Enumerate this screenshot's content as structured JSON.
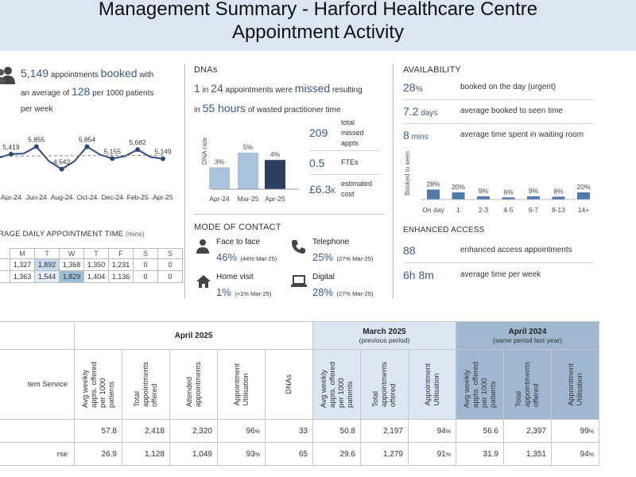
{
  "header": {
    "title_line1": "Management Summary - Harford Healthcare Centre",
    "title_line2": "Appointment Activity"
  },
  "booked": {
    "value": "5,149",
    "text1": "appointments",
    "highlight": "booked",
    "text2": "with",
    "text3": "an average of",
    "avg": "128",
    "text4": "per 1000 patients",
    "text5": "per week"
  },
  "chart_data": [
    {
      "type": "line",
      "x": [
        "Mar-24",
        "Apr-24",
        "May-24",
        "Jun-24",
        "Jul-24",
        "Aug-24",
        "Sep-24",
        "Oct-24",
        "Nov-24",
        "Dec-24",
        "Jan-25",
        "Feb-25",
        "Mar-25",
        "Apr-25"
      ],
      "tick_labels": [
        "Apr-24",
        "Jun-24",
        "Aug-24",
        "Oct-24",
        "Dec-24",
        "Feb-25",
        "Apr-25"
      ],
      "series": [
        {
          "values": [
            5200,
            5419,
            5450,
            5855,
            5000,
            4542,
            5000,
            5854,
            5400,
            5155,
            5300,
            5682,
            5250,
            5149
          ]
        }
      ],
      "data_labels": {
        "1": "5,419",
        "3": "5,855",
        "5": "4,542",
        "7": "5,854",
        "9": "5,155",
        "11": "5,682",
        "13": "5,149"
      },
      "trend": "dashed"
    },
    {
      "type": "bar",
      "ylabel": "DNA rate",
      "categories": [
        "Apr-24",
        "Mar-25",
        "Apr-25"
      ],
      "values": [
        3,
        5,
        4
      ],
      "data_labels": [
        "3%",
        "5%",
        "4%"
      ],
      "colors": [
        "#a9c3dc",
        "#a9c3dc",
        "#2d3f5e"
      ]
    },
    {
      "type": "bar",
      "ylabel": "Booked to seen",
      "categories": [
        "On day",
        "1",
        "2-3",
        "4-5",
        "6-7",
        "8-13",
        "14+"
      ],
      "values": [
        28,
        20,
        9,
        6,
        9,
        8,
        20
      ],
      "data_labels": [
        "28%",
        "20%",
        "9%",
        "6%",
        "9%",
        "8%",
        "20%"
      ],
      "color": "#4f79a8"
    }
  ],
  "daily": {
    "title_main": "RAGE DAILY APPOINTMENT TIME",
    "title_unit": "(mins)",
    "days": [
      "M",
      "T",
      "W",
      "T",
      "F",
      "S",
      "S"
    ],
    "rows": [
      {
        "values": [
          "1,327",
          "1,892",
          "1,368",
          "1,350",
          "1,231",
          "0",
          "0"
        ],
        "shade": [
          "#ffffff",
          "#c7d9ea",
          "#ffffff",
          "#ffffff",
          "#ffffff",
          "#ffffff",
          "#ffffff"
        ]
      },
      {
        "values": [
          "1,363",
          "1,544",
          "1,829",
          "1,404",
          "1,136",
          "0",
          "0"
        ],
        "shade": [
          "#ffffff",
          "#e3ecf5",
          "#9fbdd8",
          "#ffffff",
          "#ffffff",
          "#ffffff",
          "#ffffff"
        ]
      }
    ]
  },
  "dna": {
    "title": "DNAs",
    "v1": "1",
    "w_in": "in",
    "v24": "24",
    "t1": "appointments were",
    "missed": "missed",
    "t2": "resulting",
    "in2": "in",
    "hours": "55 hours",
    "t3": "of wasted practitioner time",
    "stats": [
      {
        "value": "209",
        "label1": "total",
        "label2": "missed",
        "label3": "appts"
      },
      {
        "value": "0.5",
        "label1": "FTEs"
      },
      {
        "value": "£6.3",
        "unit": "K",
        "label1": "estimated",
        "label2": "cost"
      }
    ]
  },
  "mode": {
    "title": "MODE OF CONTACT",
    "items": [
      {
        "label": "Face to face",
        "value": "46%",
        "prev": "(44% Mar-25)",
        "icon": "person-icon"
      },
      {
        "label": "Telephone",
        "value": "25%",
        "prev": "(27% Mar-25)",
        "icon": "phone-icon"
      },
      {
        "label": "Home visit",
        "value": "1%",
        "prev": "(<1% Mar-25)",
        "icon": "home-icon"
      },
      {
        "label": "Digital",
        "value": "28%",
        "prev": "(27% Mar-25)",
        "icon": "laptop-icon"
      }
    ]
  },
  "availability": {
    "title": "AVAILABILITY",
    "rows": [
      {
        "value": "28",
        "unit": "%",
        "desc": "booked on the day (urgent)"
      },
      {
        "value": "7.2",
        "unit": " days",
        "desc": "average booked to seen time"
      },
      {
        "value": "8",
        "unit": " mins",
        "desc": "average time spent in waiting room"
      }
    ]
  },
  "enhanced": {
    "title": "ENHANCED ACCESS",
    "rows": [
      {
        "value": "88",
        "desc": "enhanced access appointments"
      },
      {
        "value": "6h 8m",
        "desc": "average time per week"
      }
    ]
  },
  "table": {
    "groups": [
      {
        "title": "April 2025",
        "sub": ""
      },
      {
        "title": "March 2025",
        "sub": "(previous period)"
      },
      {
        "title": "April 2024",
        "sub": "(same period last year)"
      }
    ],
    "first_col": "tem Service",
    "headers": [
      "Avg weekly\nappts. offered\nper 1000\npatients",
      "Total\nappointments\noffered",
      "Attended\nappointments",
      "Appointment\nUtilisation",
      "DNAs",
      "Avg weekly\nappts. offered\nper 1000\npatients",
      "Total\nappointments\noffered",
      "Appointment\nUtilisation",
      "Avg weekly\nappts. offered\nper 1000\npatients",
      "Total\nappointments\noffered",
      "Appointment\nUtilisation"
    ],
    "rows": [
      {
        "label": "",
        "cells": [
          "57.8",
          "2,418",
          "2,320",
          "96",
          "33",
          "50.8",
          "2,197",
          "94",
          "56.6",
          "2,397",
          "99"
        ]
      },
      {
        "label": "rse",
        "cells": [
          "26.9",
          "1,128",
          "1,049",
          "93",
          "65",
          "29.6",
          "1,279",
          "91",
          "31.9",
          "1,351",
          "94"
        ]
      }
    ],
    "pct_cols": [
      3,
      7,
      10
    ],
    "pct_sign": "%"
  }
}
